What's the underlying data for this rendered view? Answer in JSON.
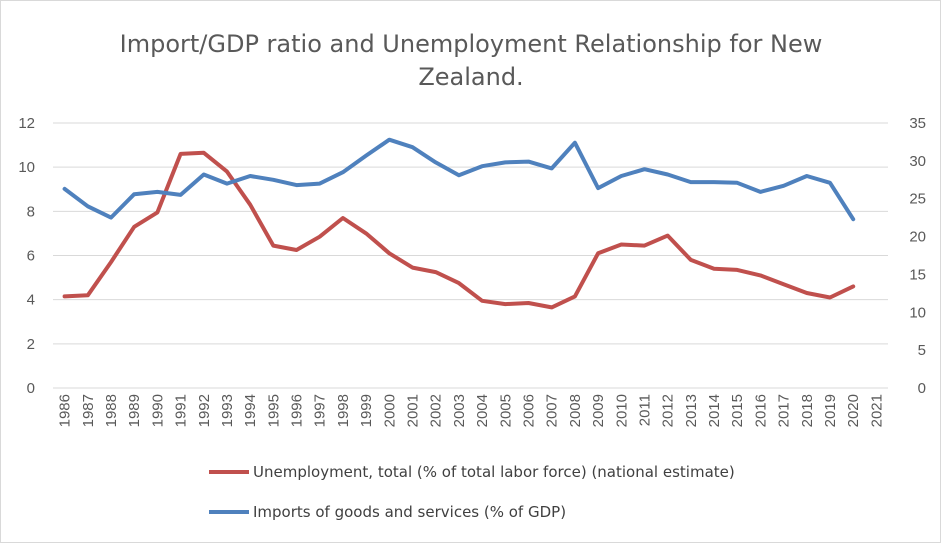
{
  "chart_data": {
    "type": "line",
    "title_line1": "Import/GDP ratio and Unemployment Relationship for New",
    "title_line2": "Zealand.",
    "categories": [
      "1986",
      "1987",
      "1988",
      "1989",
      "1990",
      "1991",
      "1992",
      "1993",
      "1994",
      "1995",
      "1996",
      "1997",
      "1998",
      "1999",
      "2000",
      "2001",
      "2002",
      "2003",
      "2004",
      "2005",
      "2006",
      "2007",
      "2008",
      "2009",
      "2010",
      "2011",
      "2012",
      "2013",
      "2014",
      "2015",
      "2016",
      "2017",
      "2018",
      "2019",
      "2020",
      "2021"
    ],
    "y_left": {
      "min": 0,
      "max": 12,
      "ticks": [
        "0",
        "2",
        "4",
        "6",
        "8",
        "10",
        "12"
      ]
    },
    "y_right": {
      "min": 0,
      "max": 35,
      "ticks": [
        "0",
        "5",
        "10",
        "15",
        "20",
        "25",
        "30",
        "35"
      ]
    },
    "grid": true,
    "legend_position": "bottom",
    "series": [
      {
        "name": "Unemployment, total (% of total labor force) (national estimate)",
        "axis": "left",
        "color": "#c0504d",
        "values": [
          4.15,
          4.2,
          5.7,
          7.3,
          7.95,
          10.6,
          10.65,
          9.8,
          8.3,
          6.45,
          6.25,
          6.85,
          7.7,
          7.0,
          6.1,
          5.45,
          5.25,
          4.75,
          3.95,
          3.8,
          3.85,
          3.65,
          4.15,
          6.1,
          6.5,
          6.45,
          6.9,
          5.8,
          5.4,
          5.35,
          5.1,
          4.7,
          4.3,
          4.1,
          4.6,
          null
        ]
      },
      {
        "name": "Imports of goods and services (% of GDP)",
        "axis": "right",
        "color": "#4f81bd",
        "values": [
          26.3,
          24.0,
          22.5,
          25.6,
          25.9,
          25.5,
          28.2,
          27.0,
          28.0,
          27.5,
          26.8,
          27.0,
          28.5,
          30.7,
          32.8,
          31.8,
          29.8,
          28.1,
          29.3,
          29.8,
          29.9,
          29.0,
          32.4,
          26.4,
          28.0,
          28.9,
          28.2,
          27.2,
          27.2,
          27.1,
          25.9,
          26.7,
          28.0,
          27.1,
          22.3,
          null
        ]
      }
    ]
  }
}
